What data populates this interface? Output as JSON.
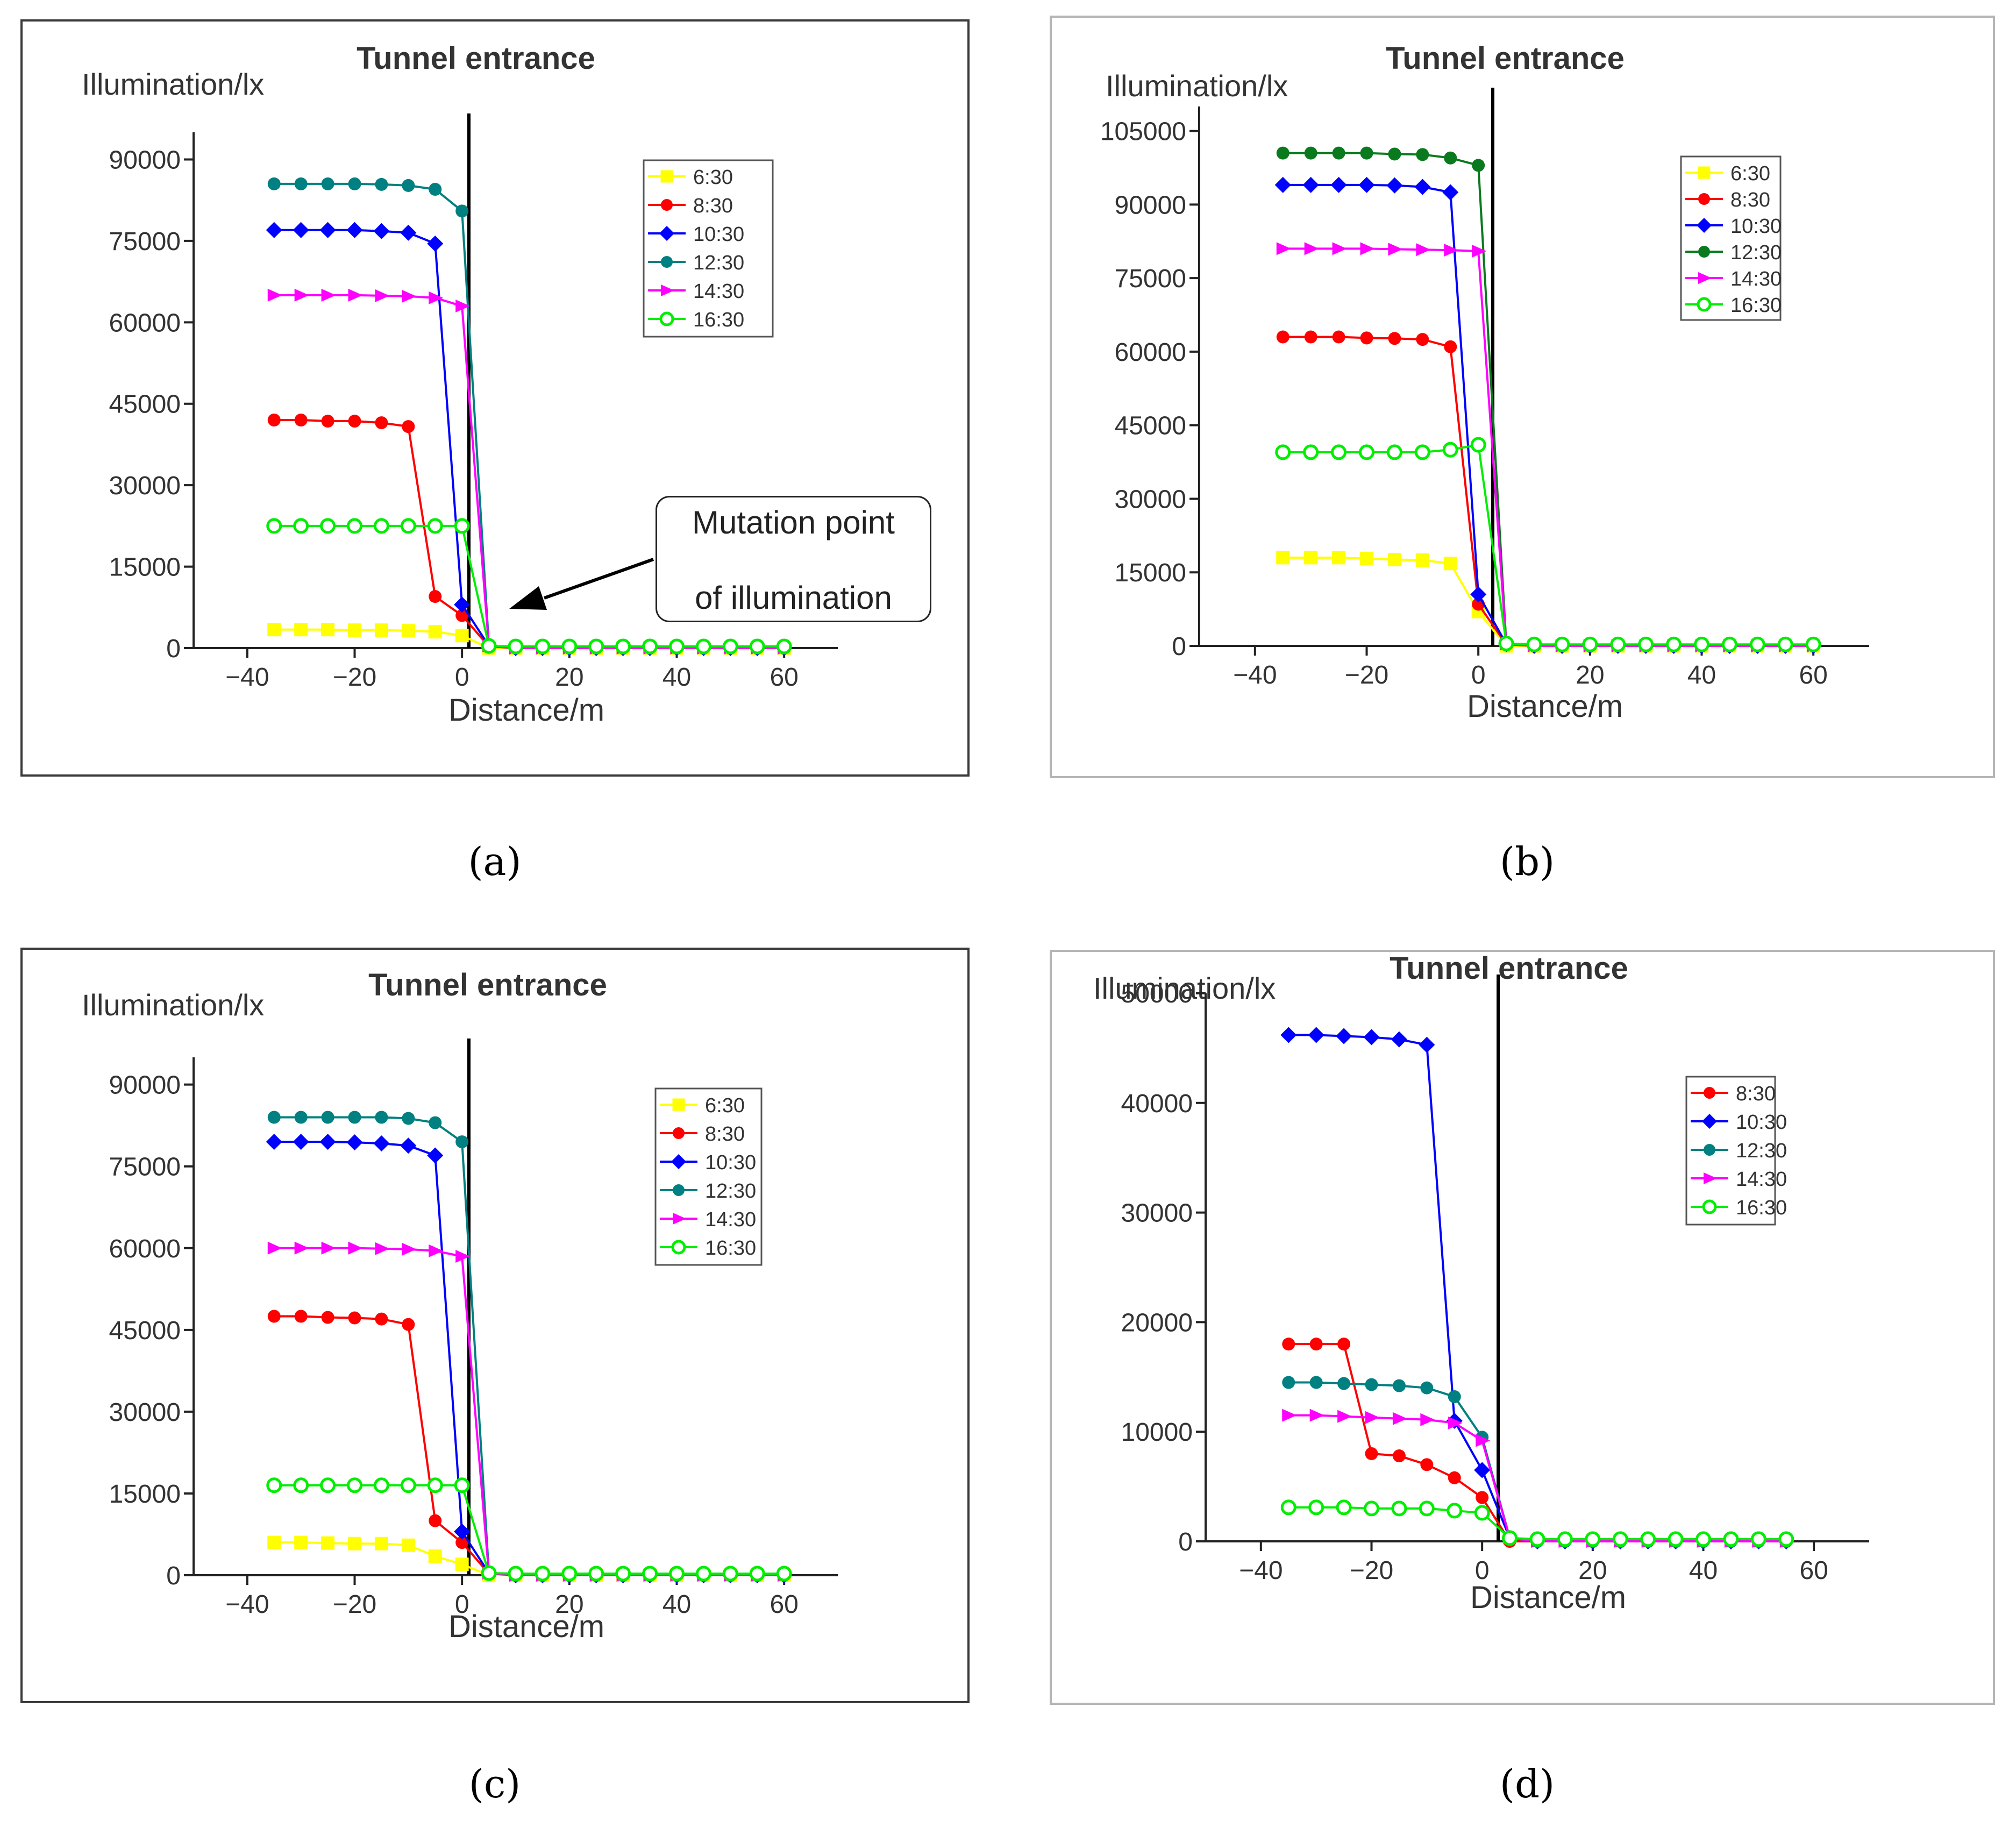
{
  "colors": {
    "6:30": "#ffff00",
    "8:30": "#ff0000",
    "10:30": "#0000ff",
    "12:30": "#008080",
    "12:30-b": "#0a7a1e",
    "14:30": "#ff00ff",
    "16:30": "#00ee00"
  },
  "captions": {
    "a": "(a)",
    "b": "(b)",
    "c": "(c)",
    "d": "(d)"
  },
  "annotation": {
    "line1": "Mutation point",
    "line2": "of illumination"
  },
  "chart_data": [
    {
      "id": "a",
      "type": "line",
      "title": "Tunnel entrance",
      "xlabel": "Distance/m",
      "ylabel": "Illumination/lx",
      "xlim": [
        -50,
        70
      ],
      "ylim": [
        0,
        95000
      ],
      "xticks": [
        -40,
        -20,
        0,
        20,
        40,
        60
      ],
      "yticks": [
        0,
        15000,
        30000,
        45000,
        60000,
        75000,
        90000
      ],
      "ytick_labels": [
        "0",
        "15000",
        "30000",
        "45000",
        "60000",
        "75000",
        "90000"
      ],
      "legend_position": "top-right",
      "annotation": "Mutation point of illumination",
      "x": [
        -35,
        -30,
        -25,
        -20,
        -15,
        -10,
        -5,
        0,
        5,
        10,
        15,
        20,
        25,
        30,
        35,
        40,
        45,
        50,
        55,
        60
      ],
      "series": [
        {
          "name": "6:30",
          "marker": "square",
          "values": [
            3400,
            3400,
            3400,
            3300,
            3300,
            3200,
            3000,
            2300,
            0,
            0,
            0,
            0,
            0,
            0,
            0,
            0,
            0,
            0,
            0,
            0
          ]
        },
        {
          "name": "8:30",
          "marker": "circle",
          "values": [
            42000,
            42000,
            41800,
            41800,
            41500,
            40800,
            9500,
            6000,
            300,
            0,
            0,
            0,
            0,
            0,
            0,
            0,
            0,
            0,
            0,
            0
          ]
        },
        {
          "name": "10:30",
          "marker": "diamond",
          "values": [
            77000,
            77000,
            77000,
            77000,
            76800,
            76500,
            74500,
            8000,
            400,
            0,
            0,
            0,
            0,
            0,
            0,
            0,
            0,
            0,
            0,
            0
          ]
        },
        {
          "name": "12:30",
          "marker": "circle",
          "values": [
            85500,
            85500,
            85500,
            85500,
            85400,
            85200,
            84500,
            80500,
            500,
            0,
            0,
            0,
            0,
            0,
            0,
            0,
            0,
            0,
            0,
            0
          ]
        },
        {
          "name": "14:30",
          "marker": "triangle-right",
          "values": [
            65000,
            65000,
            65000,
            65000,
            64900,
            64800,
            64500,
            63000,
            400,
            0,
            0,
            0,
            0,
            0,
            0,
            0,
            0,
            0,
            0,
            0
          ]
        },
        {
          "name": "16:30",
          "marker": "open-circle",
          "values": [
            22500,
            22500,
            22500,
            22500,
            22500,
            22500,
            22500,
            22500,
            400,
            300,
            300,
            300,
            300,
            300,
            300,
            300,
            300,
            300,
            300,
            300
          ]
        }
      ]
    },
    {
      "id": "b",
      "type": "line",
      "title": "Tunnel entrance",
      "xlabel": "Distance/m",
      "ylabel": "Illumination/lx",
      "xlim": [
        -50,
        70
      ],
      "ylim": [
        0,
        110000
      ],
      "xticks": [
        -40,
        -20,
        0,
        20,
        40,
        60
      ],
      "yticks": [
        0,
        15000,
        30000,
        45000,
        60000,
        75000,
        90000,
        105000
      ],
      "ytick_labels": [
        "0",
        "15000",
        "30000",
        "45000",
        "60000",
        "75000",
        "90000",
        "105000"
      ],
      "legend_position": "top-right",
      "x": [
        -35,
        -30,
        -25,
        -20,
        -15,
        -10,
        -5,
        0,
        5,
        10,
        15,
        20,
        25,
        30,
        35,
        40,
        45,
        50,
        55,
        60
      ],
      "series": [
        {
          "name": "6:30",
          "marker": "square",
          "values": [
            18000,
            18000,
            18000,
            17800,
            17600,
            17500,
            16800,
            7000,
            0,
            0,
            0,
            0,
            0,
            0,
            0,
            0,
            0,
            0,
            0,
            0
          ]
        },
        {
          "name": "8:30",
          "marker": "circle",
          "values": [
            63000,
            63000,
            63000,
            62800,
            62700,
            62500,
            61000,
            8500,
            300,
            0,
            0,
            0,
            0,
            0,
            0,
            0,
            0,
            0,
            0,
            0
          ]
        },
        {
          "name": "10:30",
          "marker": "diamond",
          "values": [
            94000,
            94000,
            94000,
            94000,
            93900,
            93600,
            92500,
            10500,
            400,
            0,
            0,
            0,
            0,
            0,
            0,
            0,
            0,
            0,
            0,
            0
          ]
        },
        {
          "name": "12:30",
          "color_key": "12:30-b",
          "marker": "circle",
          "values": [
            100500,
            100500,
            100500,
            100500,
            100300,
            100200,
            99500,
            98000,
            500,
            0,
            0,
            0,
            0,
            0,
            0,
            0,
            0,
            0,
            0,
            0
          ]
        },
        {
          "name": "14:30",
          "marker": "triangle-right",
          "values": [
            81000,
            81000,
            81000,
            81000,
            80900,
            80800,
            80700,
            80500,
            400,
            0,
            0,
            0,
            0,
            0,
            0,
            0,
            0,
            0,
            0,
            0
          ]
        },
        {
          "name": "16:30",
          "marker": "open-circle",
          "values": [
            39500,
            39500,
            39500,
            39500,
            39500,
            39500,
            40000,
            41000,
            500,
            300,
            300,
            300,
            300,
            300,
            300,
            300,
            300,
            300,
            300,
            300
          ]
        }
      ]
    },
    {
      "id": "c",
      "type": "line",
      "title": "Tunnel entrance",
      "xlabel": "Distance/m",
      "ylabel": "Illumination/lx",
      "xlim": [
        -50,
        70
      ],
      "ylim": [
        0,
        95000
      ],
      "xticks": [
        -40,
        -20,
        0,
        20,
        40,
        60
      ],
      "yticks": [
        0,
        15000,
        30000,
        45000,
        60000,
        75000,
        90000
      ],
      "ytick_labels": [
        "0",
        "15000",
        "30000",
        "45000",
        "60000",
        "75000",
        "90000"
      ],
      "legend_position": "top-right",
      "x": [
        -35,
        -30,
        -25,
        -20,
        -15,
        -10,
        -5,
        0,
        5,
        10,
        15,
        20,
        25,
        30,
        35,
        40,
        45,
        50,
        55,
        60
      ],
      "series": [
        {
          "name": "6:30",
          "marker": "square",
          "values": [
            6000,
            6000,
            5900,
            5800,
            5800,
            5500,
            3500,
            2000,
            0,
            0,
            0,
            0,
            0,
            0,
            0,
            0,
            0,
            0,
            0,
            0
          ]
        },
        {
          "name": "8:30",
          "marker": "circle",
          "values": [
            47500,
            47500,
            47300,
            47200,
            47000,
            46000,
            10000,
            6000,
            300,
            0,
            0,
            0,
            0,
            0,
            0,
            0,
            0,
            0,
            0,
            0
          ]
        },
        {
          "name": "10:30",
          "marker": "diamond",
          "values": [
            79500,
            79500,
            79500,
            79400,
            79200,
            78800,
            77000,
            8000,
            400,
            0,
            0,
            0,
            0,
            0,
            0,
            0,
            0,
            0,
            0,
            0
          ]
        },
        {
          "name": "12:30",
          "marker": "circle",
          "values": [
            84000,
            84000,
            84000,
            84000,
            84000,
            83800,
            83000,
            79500,
            500,
            0,
            0,
            0,
            0,
            0,
            0,
            0,
            0,
            0,
            0,
            0
          ]
        },
        {
          "name": "14:30",
          "marker": "triangle-right",
          "values": [
            60000,
            60000,
            60000,
            60000,
            59900,
            59800,
            59500,
            58500,
            400,
            0,
            0,
            0,
            0,
            0,
            0,
            0,
            0,
            0,
            0,
            0
          ]
        },
        {
          "name": "16:30",
          "marker": "open-circle",
          "values": [
            16500,
            16500,
            16500,
            16500,
            16500,
            16500,
            16500,
            16500,
            400,
            300,
            300,
            300,
            300,
            300,
            300,
            300,
            300,
            300,
            300,
            300
          ]
        }
      ]
    },
    {
      "id": "d",
      "type": "line",
      "title": "Tunnel entrance",
      "xlabel": "Distance/m",
      "ylabel": "Illumination/lx",
      "xlim": [
        -50,
        70
      ],
      "ylim": [
        0,
        50000
      ],
      "xticks": [
        -40,
        -20,
        0,
        20,
        40,
        60
      ],
      "yticks": [
        0,
        10000,
        20000,
        30000,
        40000,
        50000
      ],
      "ytick_labels": [
        "0",
        "10000",
        "20000",
        "30000",
        "40000",
        "50000"
      ],
      "legend_position": "top-right",
      "x": [
        -35,
        -30,
        -25,
        -20,
        -15,
        -10,
        -5,
        0,
        5,
        10,
        15,
        20,
        25,
        30,
        35,
        40,
        45,
        50,
        55
      ],
      "series": [
        {
          "name": "8:30",
          "marker": "circle",
          "values": [
            18000,
            18000,
            18000,
            8000,
            7800,
            7000,
            5800,
            4000,
            0,
            0,
            0,
            0,
            0,
            0,
            0,
            0,
            0,
            0,
            0
          ]
        },
        {
          "name": "10:30",
          "marker": "diamond",
          "values": [
            46200,
            46200,
            46100,
            46000,
            45800,
            45300,
            11000,
            6500,
            300,
            0,
            0,
            0,
            0,
            0,
            0,
            0,
            0,
            0,
            0
          ]
        },
        {
          "name": "12:30",
          "marker": "circle",
          "values": [
            14500,
            14500,
            14400,
            14300,
            14200,
            14000,
            13200,
            9500,
            300,
            0,
            0,
            0,
            0,
            0,
            0,
            0,
            0,
            0,
            0
          ]
        },
        {
          "name": "14:30",
          "marker": "triangle-right",
          "values": [
            11500,
            11500,
            11400,
            11300,
            11200,
            11100,
            10800,
            9200,
            300,
            0,
            0,
            0,
            0,
            0,
            0,
            0,
            0,
            0,
            0
          ]
        },
        {
          "name": "16:30",
          "marker": "open-circle",
          "values": [
            3100,
            3100,
            3100,
            3000,
            3000,
            3000,
            2800,
            2600,
            300,
            200,
            200,
            200,
            200,
            200,
            200,
            200,
            200,
            200,
            200
          ]
        }
      ]
    }
  ]
}
